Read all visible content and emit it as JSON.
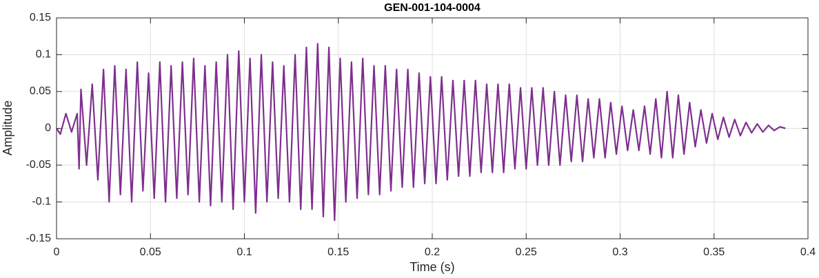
{
  "chart_data": {
    "type": "line",
    "title": "GEN-001-104-0004",
    "x_label": "Time (s)",
    "y_label": "Amplitude",
    "color": "#7e2f8e",
    "x": [
      0,
      0.002,
      0.005,
      0.008,
      0.011,
      0.012,
      0.013,
      0.016,
      0.019,
      0.022,
      0.025,
      0.028,
      0.031,
      0.034,
      0.037,
      0.04,
      0.043,
      0.046,
      0.049,
      0.052,
      0.055,
      0.058,
      0.061,
      0.064,
      0.067,
      0.07,
      0.073,
      0.076,
      0.079,
      0.082,
      0.085,
      0.088,
      0.091,
      0.094,
      0.097,
      0.1,
      0.103,
      0.106,
      0.109,
      0.112,
      0.115,
      0.118,
      0.121,
      0.124,
      0.127,
      0.13,
      0.133,
      0.136,
      0.139,
      0.142,
      0.145,
      0.148,
      0.151,
      0.154,
      0.157,
      0.16,
      0.163,
      0.166,
      0.169,
      0.172,
      0.175,
      0.178,
      0.181,
      0.184,
      0.187,
      0.19,
      0.193,
      0.196,
      0.199,
      0.202,
      0.205,
      0.208,
      0.211,
      0.214,
      0.217,
      0.22,
      0.223,
      0.226,
      0.229,
      0.232,
      0.235,
      0.238,
      0.241,
      0.244,
      0.247,
      0.25,
      0.253,
      0.256,
      0.259,
      0.262,
      0.265,
      0.268,
      0.271,
      0.274,
      0.277,
      0.28,
      0.283,
      0.286,
      0.289,
      0.292,
      0.295,
      0.298,
      0.301,
      0.304,
      0.307,
      0.31,
      0.313,
      0.316,
      0.319,
      0.322,
      0.325,
      0.328,
      0.331,
      0.334,
      0.337,
      0.34,
      0.343,
      0.346,
      0.349,
      0.352,
      0.355,
      0.358,
      0.361,
      0.364,
      0.367,
      0.37,
      0.373,
      0.376,
      0.379,
      0.382,
      0.385,
      0.388
    ],
    "values": [
      0,
      -0.008,
      0.02,
      -0.005,
      0.02,
      -0.055,
      0.053,
      -0.05,
      0.06,
      -0.07,
      0.08,
      -0.1,
      0.085,
      -0.09,
      0.08,
      -0.1,
      0.09,
      -0.085,
      0.075,
      -0.095,
      0.09,
      -0.1,
      0.085,
      -0.095,
      0.09,
      -0.09,
      0.095,
      -0.1,
      0.085,
      -0.105,
      0.09,
      -0.1,
      0.1,
      -0.11,
      0.105,
      -0.1,
      0.095,
      -0.115,
      0.1,
      -0.1,
      0.09,
      -0.095,
      0.085,
      -0.1,
      0.1,
      -0.11,
      0.11,
      -0.11,
      0.115,
      -0.12,
      0.11,
      -0.125,
      0.095,
      -0.1,
      0.09,
      -0.095,
      0.095,
      -0.09,
      0.085,
      -0.09,
      0.085,
      -0.085,
      0.08,
      -0.08,
      0.08,
      -0.08,
      0.075,
      -0.075,
      0.07,
      -0.075,
      0.07,
      -0.07,
      0.065,
      -0.065,
      0.065,
      -0.065,
      0.065,
      -0.06,
      0.06,
      -0.06,
      0.06,
      -0.06,
      0.06,
      -0.055,
      0.055,
      -0.055,
      0.055,
      -0.05,
      0.055,
      -0.05,
      0.05,
      -0.05,
      0.045,
      -0.045,
      0.045,
      -0.045,
      0.04,
      -0.04,
      0.04,
      -0.04,
      0.035,
      -0.035,
      0.03,
      -0.03,
      0.025,
      -0.03,
      0.03,
      -0.035,
      0.04,
      -0.04,
      0.05,
      -0.04,
      0.045,
      -0.035,
      0.035,
      -0.025,
      0.025,
      -0.02,
      0.02,
      -0.015,
      0.015,
      -0.012,
      0.012,
      -0.01,
      0.008,
      -0.006,
      0.006,
      -0.005,
      0.004,
      -0.003,
      0.002,
      0
    ],
    "xlim": [
      0,
      0.4
    ],
    "xticks": [
      0,
      0.05,
      0.1,
      0.15,
      0.2,
      0.25,
      0.3,
      0.35,
      0.4
    ],
    "ylim": [
      -0.15,
      0.15
    ],
    "yticks": [
      -0.15,
      -0.1,
      -0.05,
      0,
      0.05,
      0.1,
      0.15
    ],
    "grid": true
  }
}
